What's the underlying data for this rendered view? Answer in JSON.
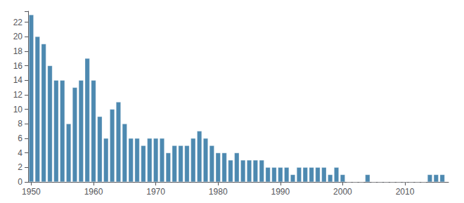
{
  "chart_data": {
    "type": "bar",
    "x": [
      1950,
      1951,
      1952,
      1953,
      1954,
      1955,
      1956,
      1957,
      1958,
      1959,
      1960,
      1961,
      1962,
      1963,
      1964,
      1965,
      1966,
      1967,
      1968,
      1969,
      1970,
      1971,
      1972,
      1973,
      1974,
      1975,
      1976,
      1977,
      1978,
      1979,
      1980,
      1981,
      1982,
      1983,
      1984,
      1985,
      1986,
      1987,
      1988,
      1989,
      1990,
      1991,
      1992,
      1993,
      1994,
      1995,
      1996,
      1997,
      1998,
      1999,
      2000,
      2001,
      2002,
      2003,
      2004,
      2005,
      2006,
      2007,
      2008,
      2009,
      2010,
      2011,
      2012,
      2013,
      2014,
      2015,
      2016
    ],
    "values": [
      23,
      20,
      19,
      16,
      14,
      14,
      8,
      13,
      14,
      17,
      14,
      9,
      6,
      10,
      11,
      8,
      6,
      6,
      5,
      6,
      6,
      6,
      4,
      5,
      5,
      5,
      6,
      7,
      6,
      5,
      4,
      4,
      3,
      4,
      3,
      3,
      3,
      3,
      2,
      2,
      2,
      2,
      1,
      2,
      2,
      2,
      2,
      2,
      1,
      2,
      1,
      0,
      0,
      0,
      1,
      0,
      0,
      0,
      0,
      0,
      0,
      0,
      0,
      0,
      1,
      1,
      1
    ],
    "color": "#4d89b0",
    "xlim": [
      1949.5,
      2017
    ],
    "xticks": [
      1950,
      1960,
      1970,
      1980,
      1990,
      2000,
      2010
    ],
    "ylim": [
      0,
      23.5
    ],
    "yticks": [
      0,
      2,
      4,
      6,
      8,
      10,
      12,
      14,
      16,
      18,
      20,
      22
    ],
    "grid": false
  }
}
